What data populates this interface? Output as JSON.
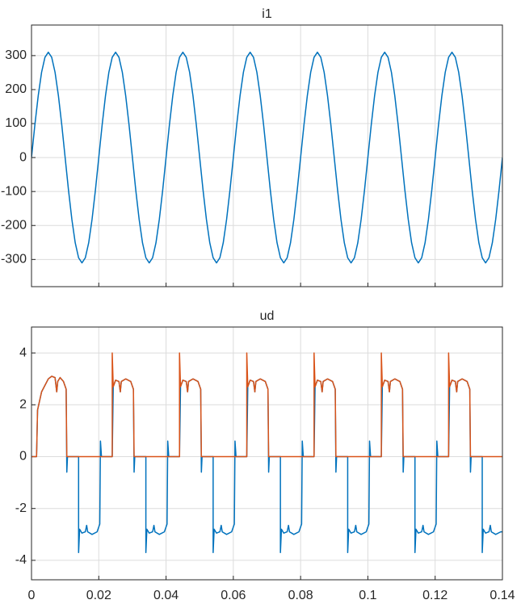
{
  "chart_data": [
    {
      "type": "line",
      "title": "i1",
      "xlim": [
        0,
        0.14
      ],
      "ylim": [
        -380,
        390
      ],
      "yticks": [
        -300,
        -200,
        -100,
        0,
        100,
        200,
        300
      ],
      "grid": true,
      "series": [
        {
          "color": "#0072bd",
          "x": [
            0,
            0.001,
            0.002,
            0.003,
            0.004,
            0.005,
            0.006,
            0.007,
            0.008,
            0.009,
            0.01,
            0.011,
            0.012,
            0.013,
            0.014,
            0.015,
            0.016,
            0.017,
            0.018,
            0.019,
            0.02,
            0.021,
            0.022,
            0.023,
            0.024,
            0.025,
            0.026,
            0.027,
            0.028,
            0.029,
            0.03,
            0.031,
            0.032,
            0.033,
            0.034,
            0.035,
            0.036,
            0.037,
            0.038,
            0.039,
            0.04,
            0.041,
            0.042,
            0.043,
            0.044,
            0.045,
            0.046,
            0.047,
            0.048,
            0.049,
            0.05,
            0.051,
            0.052,
            0.053,
            0.054,
            0.055,
            0.056,
            0.057,
            0.058,
            0.059,
            0.06,
            0.061,
            0.062,
            0.063,
            0.064,
            0.065,
            0.066,
            0.067,
            0.068,
            0.069,
            0.07,
            0.071,
            0.072,
            0.073,
            0.074,
            0.075,
            0.076,
            0.077,
            0.078,
            0.079,
            0.08,
            0.081,
            0.082,
            0.083,
            0.084,
            0.085,
            0.086,
            0.087,
            0.088,
            0.089,
            0.09,
            0.091,
            0.092,
            0.093,
            0.094,
            0.095,
            0.096,
            0.097,
            0.098,
            0.099,
            0.1,
            0.101,
            0.102,
            0.103,
            0.104,
            0.105,
            0.106,
            0.107,
            0.108,
            0.109,
            0.11,
            0.111,
            0.112,
            0.113,
            0.114,
            0.115,
            0.116,
            0.117,
            0.118,
            0.119,
            0.12,
            0.121,
            0.122,
            0.123,
            0.124,
            0.125,
            0.126,
            0.127,
            0.128,
            0.129,
            0.13,
            0.131,
            0.132,
            0.133,
            0.134,
            0.135,
            0.136,
            0.137,
            0.138,
            0.139,
            0.14
          ],
          "values": [
            0,
            96,
            182,
            251,
            295,
            310,
            295,
            251,
            182,
            96,
            0,
            -96,
            -182,
            -251,
            -295,
            -310,
            -295,
            -251,
            -182,
            -96,
            0,
            96,
            182,
            251,
            295,
            310,
            295,
            251,
            182,
            96,
            0,
            -96,
            -182,
            -251,
            -295,
            -310,
            -295,
            -251,
            -182,
            -96,
            0,
            96,
            182,
            251,
            295,
            310,
            295,
            251,
            182,
            96,
            0,
            -96,
            -182,
            -251,
            -295,
            -310,
            -295,
            -251,
            -182,
            -96,
            0,
            96,
            182,
            251,
            295,
            310,
            295,
            251,
            182,
            96,
            0,
            -96,
            -182,
            -251,
            -295,
            -310,
            -295,
            -251,
            -182,
            -96,
            0,
            96,
            182,
            251,
            295,
            310,
            295,
            251,
            182,
            96,
            0,
            -96,
            -182,
            -251,
            -295,
            -310,
            -295,
            -251,
            -182,
            -96,
            0,
            96,
            182,
            251,
            295,
            310,
            295,
            251,
            182,
            96,
            0,
            -96,
            -182,
            -251,
            -295,
            -310,
            -295,
            -251,
            -182,
            -96,
            0,
            96,
            182,
            251,
            295,
            310,
            295,
            251,
            182,
            96,
            0,
            -96,
            -182,
            -251,
            -295,
            -310,
            -295,
            -251,
            -182,
            -96,
            0
          ]
        }
      ]
    },
    {
      "type": "line",
      "title": "ud",
      "xlim": [
        0,
        0.14
      ],
      "xticks": [
        0,
        0.02,
        0.04,
        0.06,
        0.08,
        0.1,
        0.12,
        0.14
      ],
      "ylim": [
        -4.75,
        5
      ],
      "yticks": [
        -4,
        -2,
        0,
        2,
        4
      ],
      "grid": true,
      "series": [
        {
          "color": "#0072bd",
          "x": [
            0,
            0.0015,
            0.0018,
            0.003,
            0.005,
            0.006,
            0.007,
            0.0075,
            0.0078,
            0.0085,
            0.0095,
            0.0103,
            0.0105,
            0.0107,
            0.014,
            0.014,
            0.0143,
            0.015,
            0.016,
            0.0164,
            0.0167,
            0.018,
            0.0195,
            0.0203,
            0.0205,
            0.0208,
            0.024,
            0.0243,
            0.025,
            0.026,
            0.0264,
            0.0267,
            0.028,
            0.0295,
            0.0303,
            0.0305,
            0.0307,
            0.034,
            0.034,
            0.0343,
            0.035,
            0.036,
            0.0364,
            0.0367,
            0.038,
            0.0395,
            0.0403,
            0.0405,
            0.0408,
            0.044,
            0.0443,
            0.045,
            0.046,
            0.0464,
            0.0467,
            0.048,
            0.0495,
            0.0503,
            0.0505,
            0.0507,
            0.054,
            0.054,
            0.0543,
            0.055,
            0.056,
            0.0564,
            0.0567,
            0.058,
            0.0595,
            0.0603,
            0.0605,
            0.0608,
            0.064,
            0.0643,
            0.065,
            0.066,
            0.0664,
            0.0667,
            0.068,
            0.0695,
            0.0703,
            0.0705,
            0.0707,
            0.074,
            0.074,
            0.0743,
            0.075,
            0.076,
            0.0764,
            0.0767,
            0.078,
            0.0795,
            0.0803,
            0.0805,
            0.0808,
            0.084,
            0.0843,
            0.085,
            0.086,
            0.0864,
            0.0867,
            0.088,
            0.0895,
            0.0903,
            0.0905,
            0.0907,
            0.094,
            0.094,
            0.0943,
            0.095,
            0.096,
            0.0964,
            0.0967,
            0.098,
            0.0995,
            0.1003,
            0.1005,
            0.1008,
            0.104,
            0.1043,
            0.105,
            0.106,
            0.1064,
            0.1067,
            0.108,
            0.1095,
            0.1103,
            0.1105,
            0.1107,
            0.114,
            0.114,
            0.1143,
            0.115,
            0.116,
            0.1164,
            0.1167,
            0.118,
            0.1195,
            0.1203,
            0.1205,
            0.1208,
            0.124,
            0.1243,
            0.125,
            0.126,
            0.1264,
            0.1267,
            0.128,
            0.1295,
            0.1303,
            0.1305,
            0.1307,
            0.134,
            0.134,
            0.1343,
            0.135,
            0.136,
            0.1364,
            0.1367,
            0.138,
            0.1395,
            0.14
          ],
          "values": [
            0,
            0,
            1.8,
            2.5,
            3.0,
            3.1,
            3.05,
            2.5,
            2.9,
            3.05,
            2.9,
            2.6,
            -0.6,
            0,
            0,
            -3.7,
            -2.8,
            -2.95,
            -2.9,
            -2.65,
            -2.9,
            -3.0,
            -2.9,
            -2.6,
            0.6,
            0,
            0,
            2.7,
            2.95,
            2.9,
            2.5,
            2.9,
            3.0,
            2.9,
            2.6,
            -0.6,
            0,
            0,
            -3.7,
            -2.8,
            -2.95,
            -2.9,
            -2.65,
            -2.9,
            -3.0,
            -2.9,
            -2.6,
            0.6,
            0,
            0,
            2.7,
            2.95,
            2.9,
            2.5,
            2.9,
            3.0,
            2.9,
            2.6,
            -0.6,
            0,
            0,
            -3.7,
            -2.8,
            -2.95,
            -2.9,
            -2.65,
            -2.9,
            -3.0,
            -2.9,
            -2.6,
            0.6,
            0,
            0,
            2.7,
            2.95,
            2.9,
            2.5,
            2.9,
            3.0,
            2.9,
            2.6,
            -0.6,
            0,
            0,
            -3.7,
            -2.8,
            -2.95,
            -2.9,
            -2.65,
            -2.9,
            -3.0,
            -2.9,
            -2.6,
            0.6,
            0,
            0,
            2.7,
            2.95,
            2.9,
            2.5,
            2.9,
            3.0,
            2.9,
            2.6,
            -0.6,
            0,
            0,
            -3.7,
            -2.8,
            -2.95,
            -2.9,
            -2.65,
            -2.9,
            -3.0,
            -2.9,
            -2.6,
            0.6,
            0,
            0,
            2.7,
            2.95,
            2.9,
            2.5,
            2.9,
            3.0,
            2.9,
            2.6,
            -0.6,
            0,
            0,
            -3.7,
            -2.8,
            -2.95,
            -2.9,
            -2.65,
            -2.9,
            -3.0,
            -2.9,
            -2.6,
            0.6,
            0,
            0,
            2.7,
            2.95,
            2.9,
            2.5,
            2.9,
            3.0,
            2.9,
            2.6,
            -0.6,
            0,
            0,
            -3.7,
            -2.8,
            -2.95,
            -2.9,
            -2.65,
            -2.9,
            -3.0,
            -2.9,
            -2.9
          ]
        },
        {
          "color": "#d95319",
          "x": [
            0,
            0.0015,
            0.0018,
            0.003,
            0.005,
            0.006,
            0.007,
            0.0075,
            0.0078,
            0.0085,
            0.0095,
            0.0103,
            0.0105,
            0.024,
            0.024,
            0.0243,
            0.025,
            0.026,
            0.0264,
            0.0267,
            0.028,
            0.0295,
            0.0303,
            0.0305,
            0.044,
            0.044,
            0.0443,
            0.045,
            0.046,
            0.0464,
            0.0467,
            0.048,
            0.0495,
            0.0503,
            0.0505,
            0.064,
            0.064,
            0.0643,
            0.065,
            0.066,
            0.0664,
            0.0667,
            0.068,
            0.0695,
            0.0703,
            0.0705,
            0.084,
            0.084,
            0.0843,
            0.085,
            0.086,
            0.0864,
            0.0867,
            0.088,
            0.0895,
            0.0903,
            0.0905,
            0.104,
            0.104,
            0.1043,
            0.105,
            0.106,
            0.1064,
            0.1067,
            0.108,
            0.1095,
            0.1103,
            0.1105,
            0.124,
            0.124,
            0.1243,
            0.125,
            0.126,
            0.1264,
            0.1267,
            0.128,
            0.1295,
            0.1303,
            0.1305,
            0.14
          ],
          "values": [
            0,
            0,
            1.8,
            2.5,
            3.0,
            3.1,
            3.05,
            2.5,
            2.9,
            3.05,
            2.9,
            2.6,
            0,
            0,
            4,
            2.7,
            2.95,
            2.9,
            2.5,
            2.9,
            3.0,
            2.9,
            2.6,
            0,
            0,
            4,
            2.7,
            2.95,
            2.9,
            2.5,
            2.9,
            3.0,
            2.9,
            2.6,
            0,
            0,
            4,
            2.7,
            2.95,
            2.9,
            2.5,
            2.9,
            3.0,
            2.9,
            2.6,
            0,
            0,
            4,
            2.7,
            2.95,
            2.9,
            2.5,
            2.9,
            3.0,
            2.9,
            2.6,
            0,
            0,
            4,
            2.7,
            2.95,
            2.9,
            2.5,
            2.9,
            3.0,
            2.9,
            2.6,
            0,
            0,
            4,
            2.7,
            2.95,
            2.9,
            2.5,
            2.9,
            3.0,
            2.9,
            2.6,
            0,
            0
          ]
        }
      ]
    }
  ]
}
